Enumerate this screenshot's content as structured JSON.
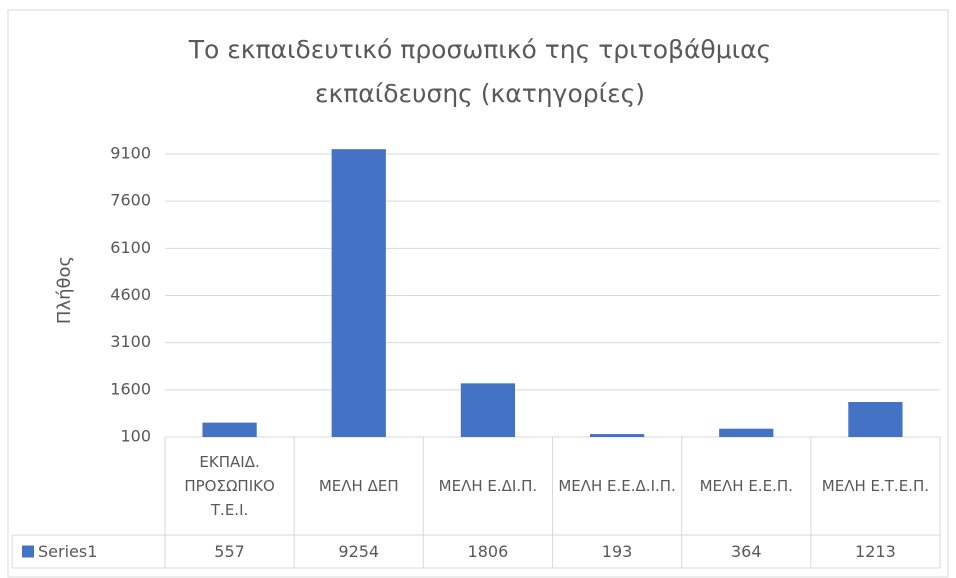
{
  "chart_data": {
    "type": "bar",
    "title": "Το εκπαιδευτικό προσωπικό της τριτοβάθμιας εκπαίδευσης (κατηγορίες)",
    "y_label": "Πλήθος",
    "categories": [
      "ΕΚΠΑΙΔ. ΠΡΟΣΩΠΙΚΟ Τ.Ε.Ι.",
      "ΜΕΛΗ ΔΕΠ",
      "ΜΕΛΗ Ε.ΔΙ.Π.",
      "ΜΕΛΗ Ε.Ε.Δ.Ι.Π.",
      "ΜΕΛΗ Ε.Ε.Π.",
      "ΜΕΛΗ Ε.Τ.Ε.Π."
    ],
    "series": [
      {
        "name": "Series1",
        "color": "#4472c4",
        "values": [
          557,
          9254,
          1806,
          193,
          364,
          1213
        ]
      }
    ],
    "ylim": [
      100,
      9100
    ],
    "yticks": [
      100,
      1600,
      3100,
      4600,
      6100,
      7600,
      9100
    ],
    "grid": true
  }
}
